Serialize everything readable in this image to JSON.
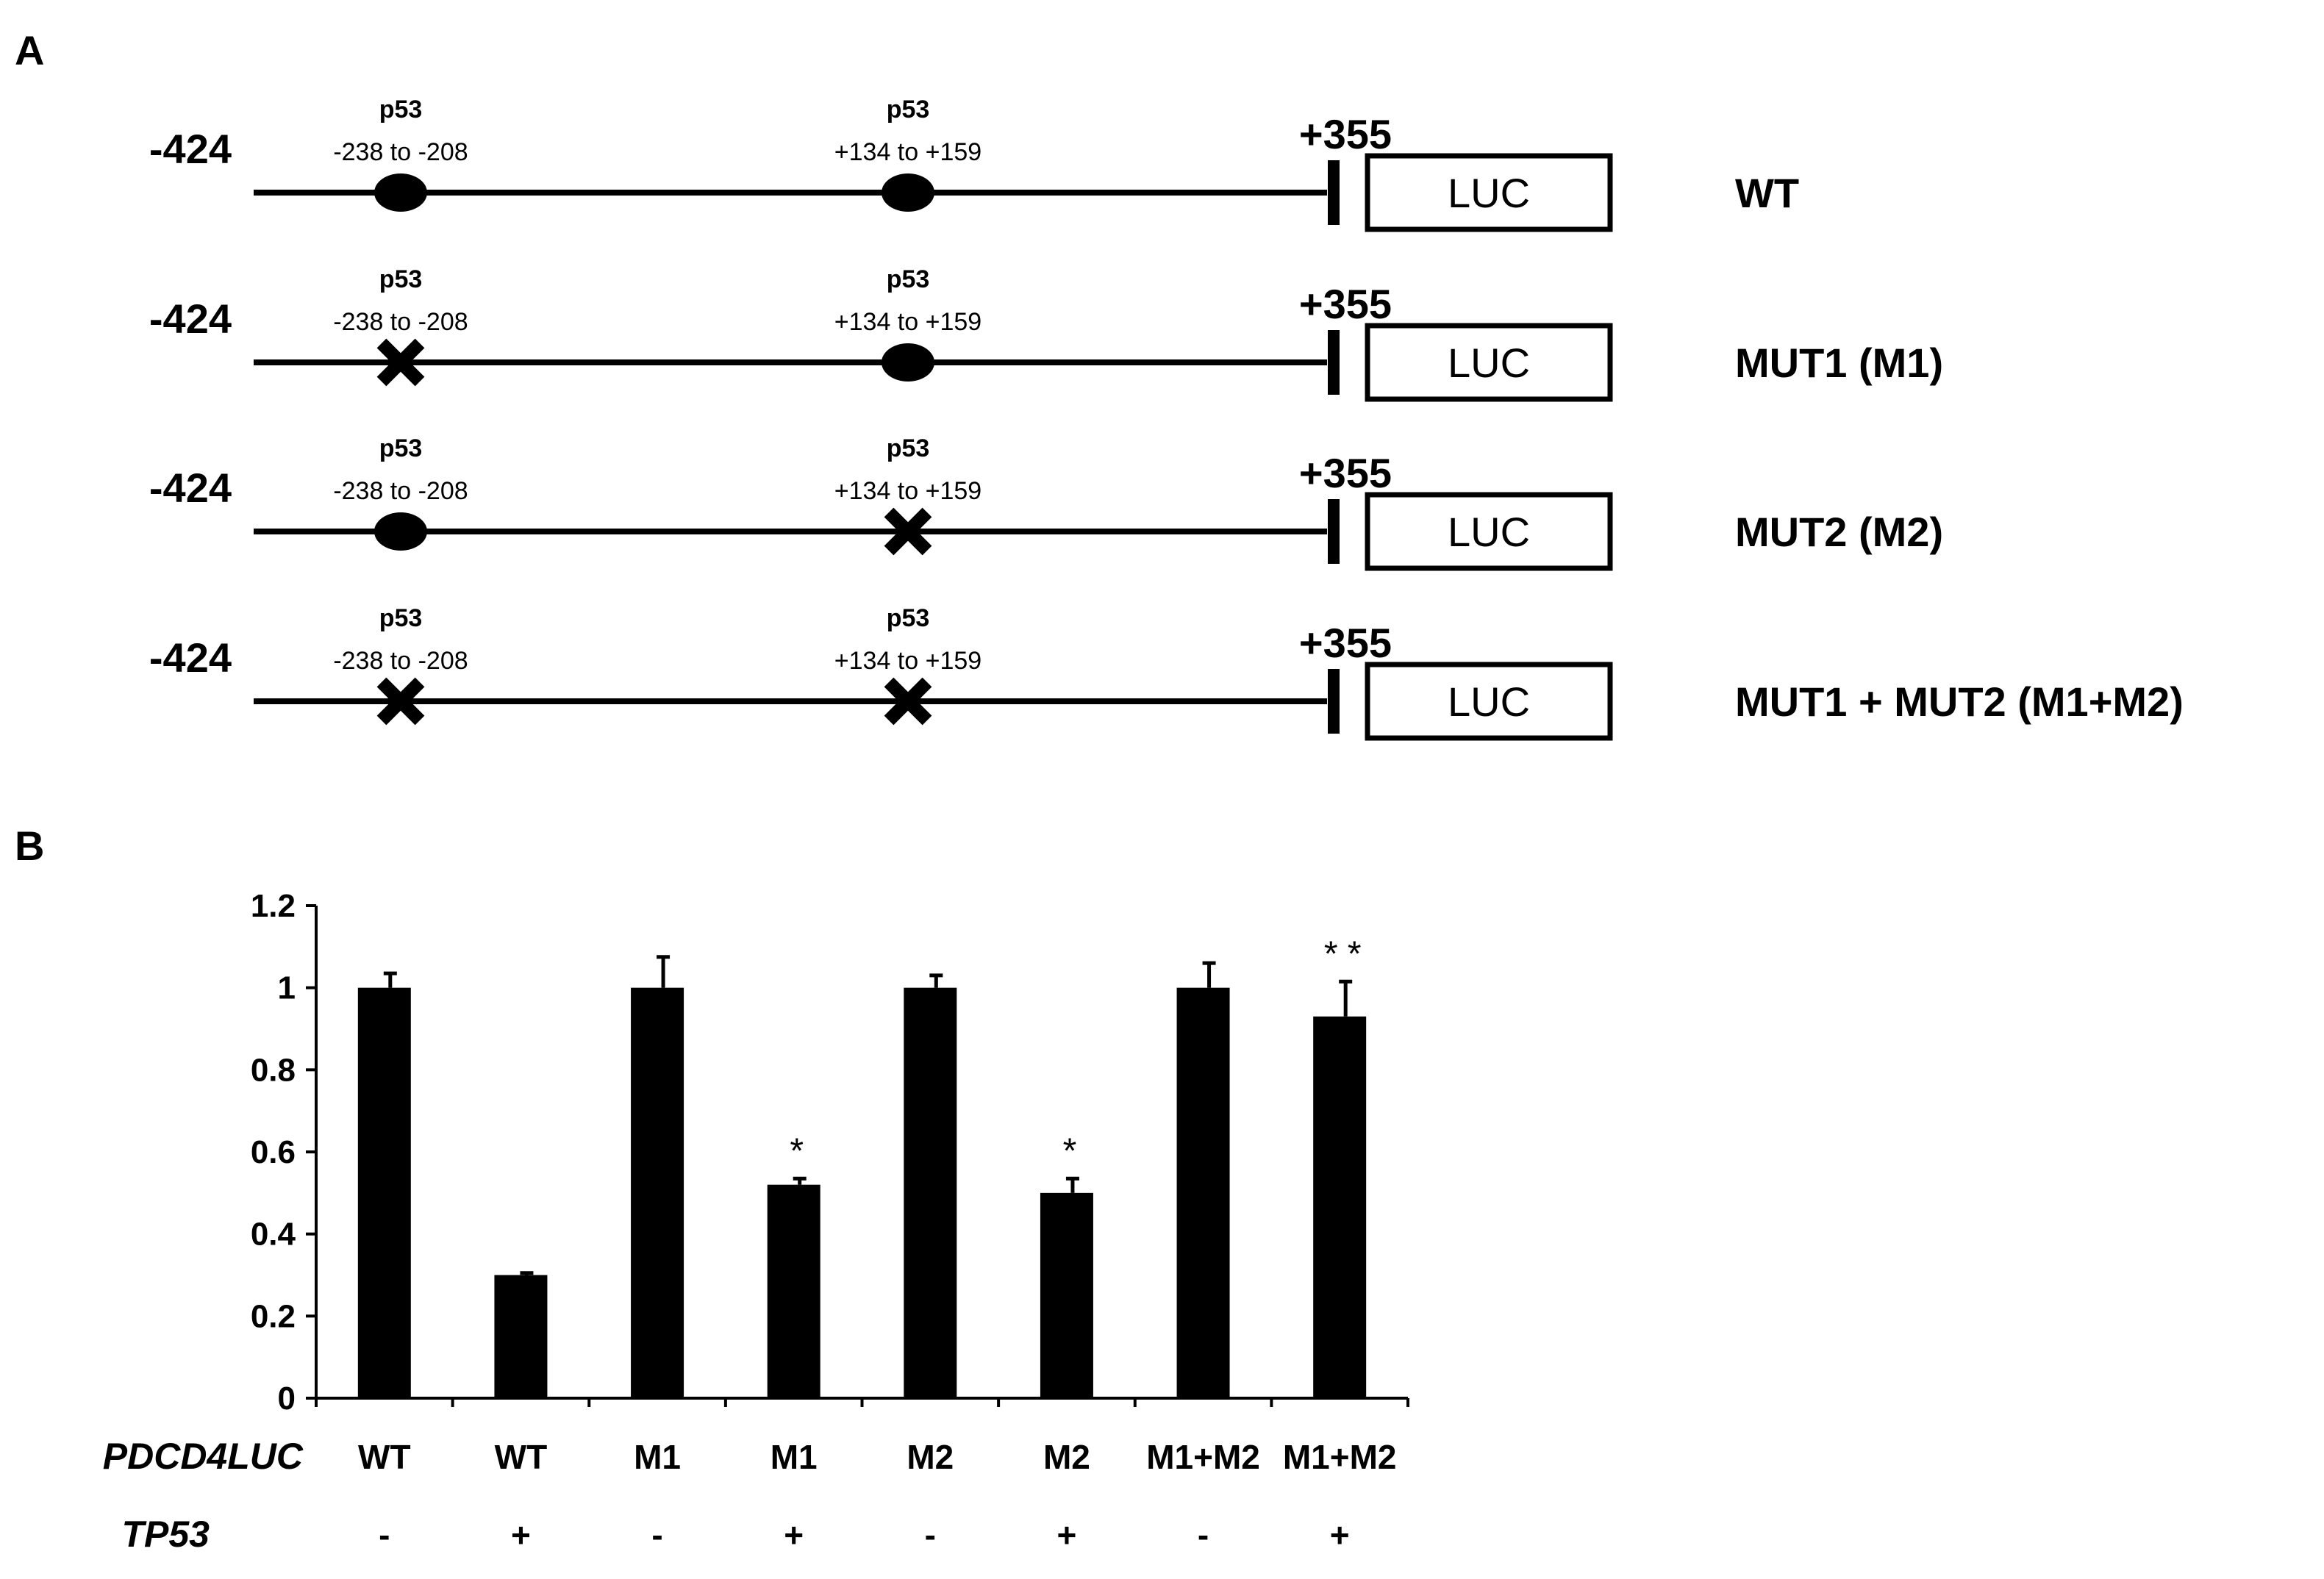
{
  "panel_a": {
    "letter": "A",
    "upstream_coord": "-424",
    "downstream_coord": "+355",
    "reporter": "LUC",
    "site1": {
      "name": "p53",
      "range": "-238 to -208"
    },
    "site2": {
      "name": "p53",
      "range": "+134 to +159"
    },
    "constructs": [
      {
        "label": "WT",
        "site1": "intact",
        "site2": "intact"
      },
      {
        "label": "MUT1 (M1)",
        "site1": "mutated",
        "site2": "intact"
      },
      {
        "label": "MUT2 (M2)",
        "site1": "intact",
        "site2": "mutated"
      },
      {
        "label": "MUT1 + MUT2 (M1+M2)",
        "site1": "mutated",
        "site2": "mutated"
      }
    ]
  },
  "panel_b": {
    "letter": "B",
    "row_labels": {
      "construct": "PDCD4LUC",
      "tp53": "TP53"
    }
  },
  "chart_data": {
    "type": "bar",
    "categories": [
      "WT",
      "WT",
      "M1",
      "M1",
      "M2",
      "M2",
      "M1+M2",
      "M1+M2"
    ],
    "tp53": [
      "-",
      "+",
      "-",
      "+",
      "-",
      "+",
      "-",
      "+"
    ],
    "values": [
      1.0,
      0.3,
      1.0,
      0.52,
      1.0,
      0.5,
      1.0,
      0.93
    ],
    "errors": [
      0.035,
      0.005,
      0.075,
      0.015,
      0.03,
      0.035,
      0.06,
      0.085
    ],
    "significance": [
      "",
      "",
      "",
      "*",
      "",
      "*",
      "",
      "**"
    ],
    "yticks": [
      "0",
      "0.2",
      "0.4",
      "0.6",
      "0.8",
      "1",
      "1.2"
    ],
    "ylim": [
      0,
      1.2
    ],
    "bar_color": "#000000"
  }
}
